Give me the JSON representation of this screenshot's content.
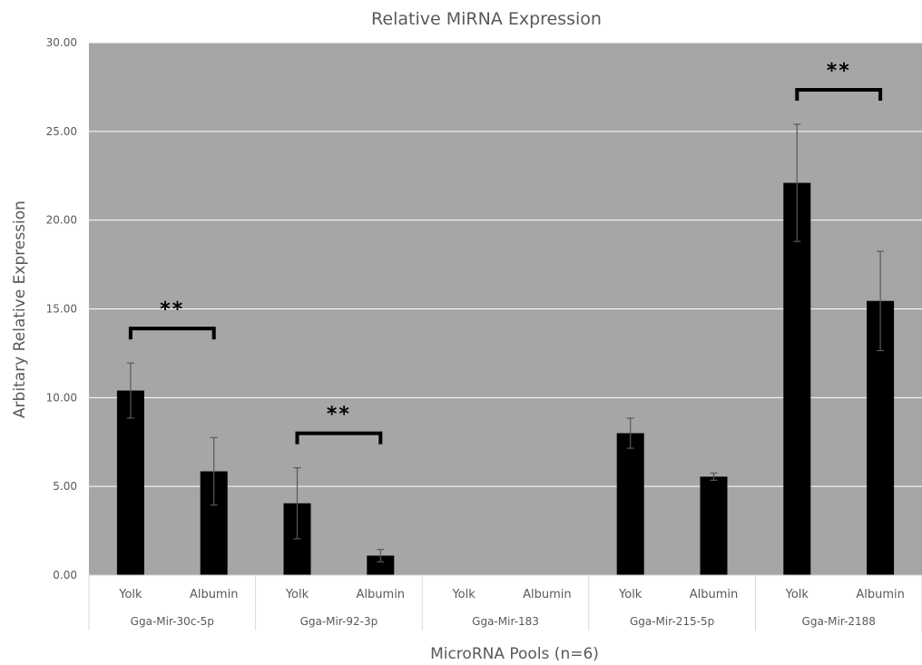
{
  "chart_data": {
    "type": "bar",
    "title": "Relative MiRNA Expression",
    "xlabel": "MicroRNA Pools (n=6)",
    "ylabel": "Arbitary Relative Expression",
    "ylim": [
      0,
      30
    ],
    "yticks": [
      "0.00",
      "5.00",
      "10.00",
      "15.00",
      "20.00",
      "25.00",
      "30.00"
    ],
    "grid": true,
    "legend": "none",
    "colors": {
      "plot_bg": "#a6a6a6",
      "bar": "#000000",
      "grid": "#ffffff",
      "error": "#595959"
    },
    "groups": [
      {
        "name": "Gga-Mir-30c-5p",
        "bars": [
          {
            "label": "Yolk",
            "value": 10.4,
            "error": 1.55
          },
          {
            "label": "Albumin",
            "value": 5.85,
            "error": 1.9
          }
        ],
        "significance": "**"
      },
      {
        "name": "Gga-Mir-92-3p",
        "bars": [
          {
            "label": "Yolk",
            "value": 4.05,
            "error": 2.0
          },
          {
            "label": "Albumin",
            "value": 1.1,
            "error": 0.35
          }
        ],
        "significance": "**"
      },
      {
        "name": "Gga-Mir-183",
        "bars": [
          {
            "label": "Yolk",
            "value": 0,
            "error": 0
          },
          {
            "label": "Albumin",
            "value": 0,
            "error": 0
          }
        ],
        "significance": ""
      },
      {
        "name": "Gga-Mir-215-5p",
        "bars": [
          {
            "label": "Yolk",
            "value": 8.0,
            "error": 0.85
          },
          {
            "label": "Albumin",
            "value": 5.55,
            "error": 0.2
          }
        ],
        "significance": ""
      },
      {
        "name": "Gga-Mir-2188",
        "bars": [
          {
            "label": "Yolk",
            "value": 22.1,
            "error": 3.3
          },
          {
            "label": "Albumin",
            "value": 15.45,
            "error": 2.8
          }
        ],
        "significance": "**"
      }
    ]
  }
}
